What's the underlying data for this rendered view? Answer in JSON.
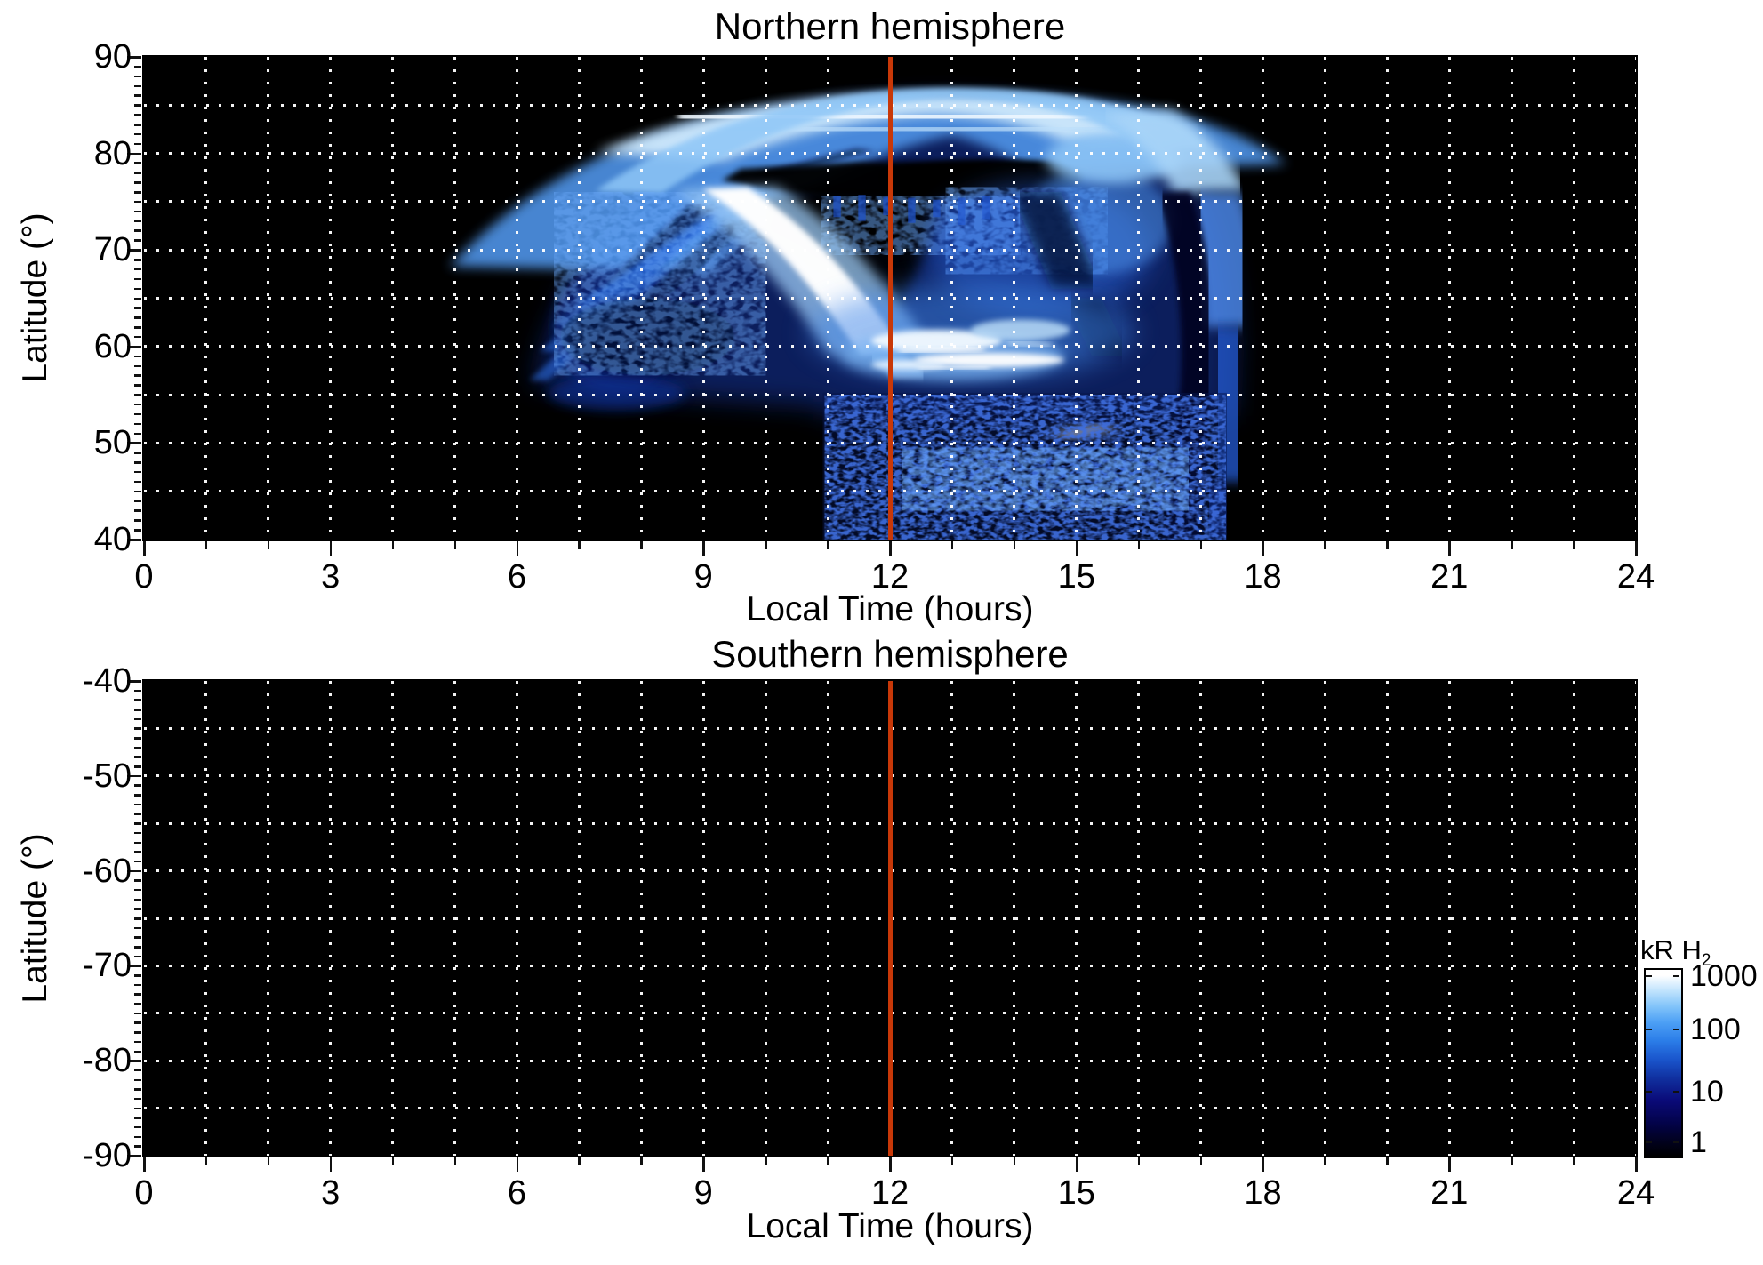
{
  "figure": {
    "kind": "two-panel auroral emission map",
    "background": "#ffffff"
  },
  "panels": [
    {
      "title": "Northern hemisphere",
      "xlabel": "Local Time (hours)",
      "ylabel": "Latitude (°)",
      "x_ticks": [
        "0",
        "3",
        "6",
        "9",
        "12",
        "15",
        "18",
        "21",
        "24"
      ],
      "y_ticks": [
        "90",
        "80",
        "70",
        "60",
        "50",
        "40"
      ],
      "x_range": [
        0,
        24
      ],
      "y_range": [
        40,
        90
      ],
      "marker_line_hour": 12
    },
    {
      "title": "Southern hemisphere",
      "xlabel": "Local Time (hours)",
      "ylabel": "Latitude (°)",
      "x_ticks": [
        "0",
        "3",
        "6",
        "9",
        "12",
        "15",
        "18",
        "21",
        "24"
      ],
      "y_ticks": [
        "-40",
        "-50",
        "-60",
        "-70",
        "-80",
        "-90"
      ],
      "x_range": [
        0,
        24
      ],
      "y_range": [
        -90,
        -40
      ],
      "marker_line_hour": 12
    }
  ],
  "colorbar": {
    "title": "kR H",
    "title_subscript": "2",
    "tick_labels": [
      "1000",
      "100",
      "10",
      "1"
    ],
    "scale": "log",
    "range_kR": [
      1,
      1000
    ]
  },
  "colors": {
    "plot_background": "#000000",
    "grid": "#ffffff",
    "marker_line": "#c83808",
    "axis": "#000000",
    "colormap_black_to_white_blue": [
      "#000000",
      "#0a0a78",
      "#1a55cc",
      "#2b7de8",
      "#86c6fa",
      "#ffffff"
    ]
  },
  "chart_data": {
    "type": "heatmap",
    "title": "H2 auroral emission brightness versus local time and latitude",
    "x_axis": {
      "label": "Local Time (hours)",
      "range": [
        0,
        24
      ],
      "major_ticks": [
        0,
        3,
        6,
        9,
        12,
        15,
        18,
        21,
        24
      ],
      "minor_tick_step_hours": 1,
      "grid_step_hours": 1
    },
    "y_axis": {
      "label": "Latitude (°)",
      "north_range": [
        40,
        90
      ],
      "south_range": [
        -90,
        -40
      ],
      "major_tick_step_deg": 10,
      "minor_tick_step_deg": 1,
      "grid_step_deg": 5
    },
    "color_scale": {
      "units": "kR H2",
      "type": "log",
      "min": 1,
      "max": 1000
    },
    "marker": {
      "type": "vertical line",
      "local_time_hours": 12,
      "color": "#c83808",
      "spans_full_height": true
    },
    "north_panel_features": [
      {
        "name": "main_auroral_oval",
        "local_time_h": [
          6.3,
          17.5
        ],
        "latitude_deg": [
          54,
          87
        ],
        "intensity_kR": "30-1000",
        "note": "crescent-shaped band with feathered streaky edges"
      },
      {
        "name": "polar_band_core",
        "local_time_h": [
          8.5,
          15.5
        ],
        "latitude_deg": [
          82,
          86
        ],
        "intensity_kR": "300-1000",
        "note": "bright white-blue band along top"
      },
      {
        "name": "data_gap",
        "local_time_h": [
          9.5,
          15.0
        ],
        "latitude_deg": [
          76,
          80.5
        ],
        "intensity_kR": 0,
        "note": "black ragged-edged gap below polar band"
      },
      {
        "name": "diagonal_arc",
        "from_lt_lat": [
          9.3,
          76
        ],
        "to_lt_lat": [
          12.0,
          58
        ],
        "intensity_kR": 1000,
        "note": "thin bright white arc descending toward noon"
      },
      {
        "name": "bright_patches",
        "local_time_h": [
          12.1,
          14.6
        ],
        "latitude_deg": [
          55,
          63
        ],
        "intensity_kR": "300-1000",
        "note": "cluster of white patches just right of the 12h line"
      },
      {
        "name": "diffuse_emission",
        "local_time_h": [
          11,
          17.3
        ],
        "latitude_deg": [
          55,
          78
        ],
        "intensity_kR": "10-100",
        "note": "speckled medium-blue region with dark lanes"
      },
      {
        "name": "dusk_limb_arc",
        "local_time_h": [
          15.9,
          17.5
        ],
        "latitude_deg": [
          40,
          85
        ],
        "intensity_kR": "10-300",
        "note": "curved bright edge fading toward bottom, black beyond 17.5h"
      },
      {
        "name": "low_latitude_speckle",
        "local_time_h": [
          10.9,
          17.4
        ],
        "latitude_deg": [
          40,
          55
        ],
        "intensity_kR": "1-10",
        "note": "faint noisy dark-blue block"
      }
    ],
    "south_panel_features": [],
    "south_panel_note": "no emission data; panel entirely black with grid and 12h marker line"
  }
}
